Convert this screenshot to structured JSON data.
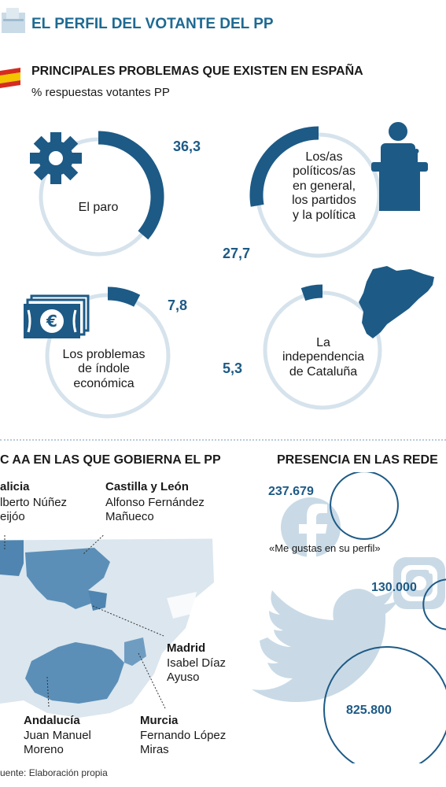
{
  "header": {
    "title": "EL PERFIL DEL VOTANTE DEL PP"
  },
  "problems": {
    "title": "PRINCIPALES PROBLEMAS QUE EXISTEN EN ESPAÑA",
    "subtitle": "% respuestas votantes PP",
    "icons": [
      "spain-flag-icon",
      "gear-icon",
      "podium-speaker-icon",
      "euro-banknotes-icon",
      "catalonia-map-icon"
    ],
    "colors": {
      "accent": "#1d5a86",
      "ring_track": "#d6e3ec"
    }
  },
  "chart_data": [
    {
      "type": "donut",
      "title": "PRINCIPALES PROBLEMAS QUE EXISTEN EN ESPAÑA",
      "subtitle": "% respuestas votantes PP",
      "unit": "%",
      "categories": [
        "El paro",
        "Los/as políticos/as en general, los partidos y la política",
        "Los problemas de índole económica",
        "La independencia de Cataluña"
      ],
      "values": [
        36.3,
        27.7,
        7.8,
        5.3
      ],
      "value_labels": [
        "36,3",
        "27,7",
        "7,8",
        "5,3"
      ],
      "label_lines": [
        [
          "El paro"
        ],
        [
          "Los/as",
          "políticos/as",
          "en general,",
          "los partidos",
          "y la política"
        ],
        [
          "Los problemas",
          "de índole",
          "económica"
        ],
        [
          "La",
          "independencia",
          "de Cataluña"
        ]
      ]
    },
    {
      "type": "bubble",
      "title": "PRESENCIA EN LAS REDES",
      "note": "«Me gustas en su perfil»",
      "categories": [
        "Facebook",
        "Instagram",
        "Twitter"
      ],
      "values": [
        237679,
        130000,
        825800
      ],
      "value_labels": [
        "237.679",
        "130.000",
        "825.800"
      ]
    }
  ],
  "regions": {
    "title": "C AA EN LAS QUE GOBIERNA EL PP",
    "items": [
      {
        "name": "alicia",
        "person_lines": [
          "lberto Núñez",
          "eijóo"
        ]
      },
      {
        "name": "Castilla y León",
        "person_lines": [
          "Alfonso Fernández",
          "Mañueco"
        ]
      },
      {
        "name": "Madrid",
        "person_lines": [
          "Isabel Díaz",
          "Ayuso"
        ]
      },
      {
        "name": "Andalucía",
        "person_lines": [
          "Juan Manuel",
          "Moreno"
        ]
      },
      {
        "name": "Murcia",
        "person_lines": [
          "Fernando López",
          "Miras"
        ]
      }
    ],
    "colors": {
      "governed": "#5b8fb8",
      "other": "#dbe6ee"
    }
  },
  "social": {
    "title": "PRESENCIA EN LAS REDE",
    "icons": [
      "facebook-icon",
      "instagram-icon",
      "twitter-bird-icon"
    ]
  },
  "footer": {
    "source": "uente: Elaboración propia"
  }
}
